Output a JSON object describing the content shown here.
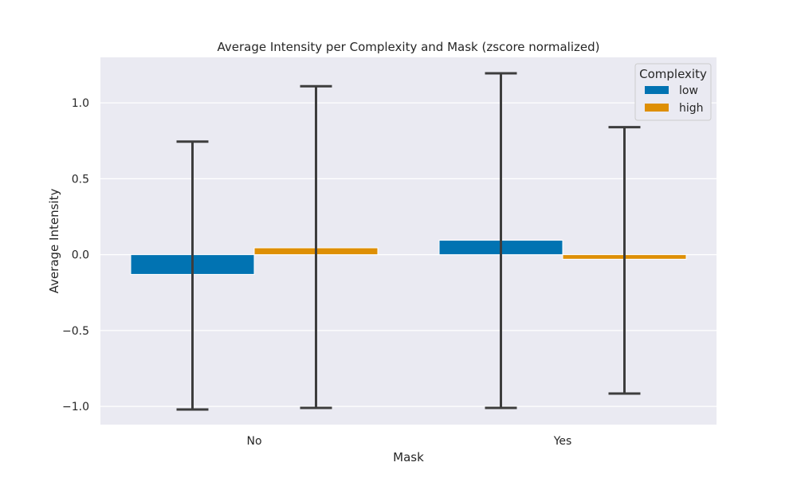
{
  "chart_data": {
    "type": "bar",
    "title": "Average Intensity per Complexity and Mask (zscore normalized)",
    "xlabel": "Mask",
    "ylabel": "Average Intensity",
    "categories": [
      "No",
      "Yes"
    ],
    "ylim": [
      -1.12,
      1.3
    ],
    "yticks": [
      -1.0,
      -0.5,
      0.0,
      0.5,
      1.0
    ],
    "ytick_labels": [
      "−1.0",
      "−0.5",
      "0.0",
      "0.5",
      "1.0"
    ],
    "grid": true,
    "legend": {
      "title": "Complexity",
      "position": "top-right"
    },
    "series": [
      {
        "name": "low",
        "color": "#0173b2",
        "values": [
          -0.13,
          0.095
        ],
        "error_low": [
          -1.02,
          -1.01
        ],
        "error_high": [
          0.745,
          1.195
        ]
      },
      {
        "name": "high",
        "color": "#de8f05",
        "values": [
          0.045,
          -0.03
        ],
        "error_low": [
          -1.01,
          -0.915
        ],
        "error_high": [
          1.11,
          0.84
        ]
      }
    ]
  }
}
